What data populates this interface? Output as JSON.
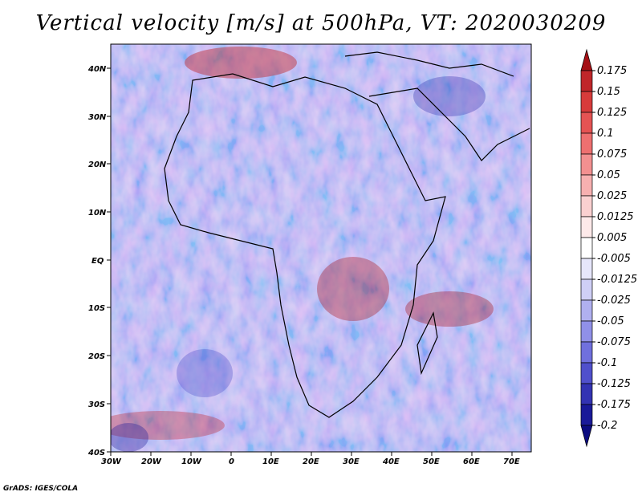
{
  "title": "Vertical velocity [m/s] at 500hPa, VT: 2020030209",
  "credit": "GrADS: IGES/COLA",
  "map": {
    "lon_range": [
      -30,
      75
    ],
    "lat_range": [
      -40,
      45
    ],
    "lat_labels": [
      "40N",
      "30N",
      "20N",
      "10N",
      "EQ",
      "10S",
      "20S",
      "30S",
      "40S"
    ],
    "lon_labels": [
      "30W",
      "20W",
      "10W",
      "0",
      "10E",
      "20E",
      "30E",
      "40E",
      "50E",
      "60E",
      "70E"
    ]
  },
  "colorbar": {
    "labels": [
      "0.175",
      "0.15",
      "0.125",
      "0.1",
      "0.075",
      "0.05",
      "0.025",
      "0.0125",
      "0.005",
      "-0.005",
      "-0.0125",
      "-0.025",
      "-0.05",
      "-0.075",
      "-0.1",
      "-0.125",
      "-0.175",
      "-0.2"
    ],
    "colors": [
      "#a50f15",
      "#c0262a",
      "#d73b3b",
      "#e55353",
      "#ee7070",
      "#f39090",
      "#f7b0b0",
      "#fad0d0",
      "#fde9e9",
      "#ffffff",
      "#e6e6fb",
      "#cfcff6",
      "#b0b0f0",
      "#9090e8",
      "#7070dd",
      "#5050cc",
      "#3333b3",
      "#1a1a99",
      "#0c0c80"
    ]
  }
}
